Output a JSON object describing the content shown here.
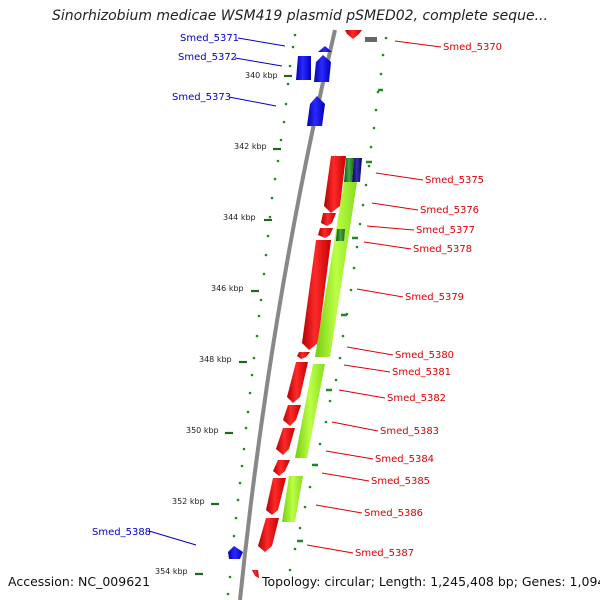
{
  "title": "Sinorhizobium medicae WSM419 plasmid pSMED02, complete seque...",
  "accession": "Accession: NC_009621",
  "topology": "Topology: circular; Length: 1,245,408 bp; Genes: 1,094",
  "colors": {
    "forward_gene": "#0000ee",
    "reverse_gene": "#ee0000",
    "backbone": "#888888",
    "cog_light": "#99ee22",
    "cog_dark": "#227722",
    "cog_navy": "#000088",
    "tick_dots": "#228822"
  },
  "kbp_ticks": [
    "340 kbp",
    "342 kbp",
    "344 kbp",
    "346 kbp",
    "348 kbp",
    "350 kbp",
    "352 kbp",
    "354 kbp"
  ],
  "forward_labels": [
    "Smed_5371",
    "Smed_5372",
    "Smed_5373",
    "Smed_5388"
  ],
  "reverse_labels": [
    "Smed_5370",
    "Smed_5375",
    "Smed_5376",
    "Smed_5377",
    "Smed_5378",
    "Smed_5379",
    "Smed_5380",
    "Smed_5381",
    "Smed_5382",
    "Smed_5383",
    "Smed_5384",
    "Smed_5385",
    "Smed_5386",
    "Smed_5387"
  ]
}
